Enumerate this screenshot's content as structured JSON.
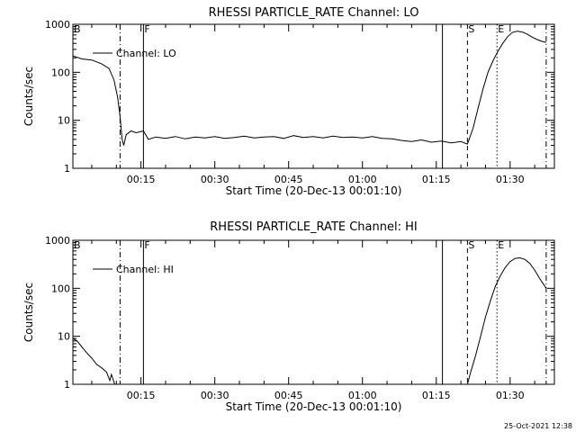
{
  "footer_timestamp": "25-Oct-2021 12:38",
  "chart_data": [
    {
      "type": "line",
      "title": "RHESSI PARTICLE_RATE Channel: LO",
      "xlabel": "Start Time (20-Dec-13 00:01:10)",
      "ylabel": "Counts/sec",
      "yscale": "log",
      "ylim": [
        1,
        1000
      ],
      "xlim": [
        "00:01:10",
        "01:39:00"
      ],
      "x_ticks": [
        "00:15",
        "00:30",
        "00:45",
        "01:00",
        "01:15",
        "01:30"
      ],
      "y_ticks": [
        "1",
        "10",
        "100",
        "1000"
      ],
      "legend": {
        "label": "Channel: LO",
        "placement": "top-left"
      },
      "markers": [
        {
          "label": "B",
          "time": "00:01:10",
          "style": "solid"
        },
        {
          "label": "",
          "time": "00:10:45",
          "style": "dashdot"
        },
        {
          "label": "F",
          "time": "00:15:30",
          "style": "solid"
        },
        {
          "label": "",
          "time": "01:16:15",
          "style": "solid"
        },
        {
          "label": "S",
          "time": "01:21:20",
          "style": "dashed"
        },
        {
          "label": "E",
          "time": "01:27:20",
          "style": "dotted"
        },
        {
          "label": "",
          "time": "01:37:20",
          "style": "dashdot"
        }
      ],
      "series": [
        {
          "values": [
            [
              "00:01:10",
              220
            ],
            [
              "00:03:00",
              190
            ],
            [
              "00:05:00",
              180
            ],
            [
              "00:07:00",
              150
            ],
            [
              "00:08:30",
              120
            ],
            [
              "00:09:30",
              70
            ],
            [
              "00:10:15",
              30
            ],
            [
              "00:10:45",
              12
            ],
            [
              "00:11:10",
              4
            ],
            [
              "00:11:30",
              3
            ],
            [
              "00:12:00",
              5
            ],
            [
              "00:13:00",
              6
            ],
            [
              "00:14:00",
              5.5
            ],
            [
              "00:15:30",
              6
            ],
            [
              "00:16:30",
              4
            ],
            [
              "00:18:00",
              4.5
            ],
            [
              "00:20:00",
              4.2
            ],
            [
              "00:22:00",
              4.6
            ],
            [
              "00:24:00",
              4.1
            ],
            [
              "00:26:00",
              4.5
            ],
            [
              "00:28:00",
              4.3
            ],
            [
              "00:30:00",
              4.6
            ],
            [
              "00:32:00",
              4.2
            ],
            [
              "00:34:00",
              4.4
            ],
            [
              "00:36:00",
              4.7
            ],
            [
              "00:38:00",
              4.3
            ],
            [
              "00:40:00",
              4.5
            ],
            [
              "00:42:00",
              4.6
            ],
            [
              "00:44:00",
              4.2
            ],
            [
              "00:46:00",
              4.8
            ],
            [
              "00:48:00",
              4.4
            ],
            [
              "00:50:00",
              4.6
            ],
            [
              "00:52:00",
              4.3
            ],
            [
              "00:54:00",
              4.7
            ],
            [
              "00:56:00",
              4.4
            ],
            [
              "00:58:00",
              4.5
            ],
            [
              "01:00:00",
              4.3
            ],
            [
              "01:02:00",
              4.6
            ],
            [
              "01:04:00",
              4.2
            ],
            [
              "01:06:00",
              4.1
            ],
            [
              "01:08:00",
              3.8
            ],
            [
              "01:10:00",
              3.6
            ],
            [
              "01:12:00",
              3.9
            ],
            [
              "01:14:00",
              3.5
            ],
            [
              "01:16:00",
              3.7
            ],
            [
              "01:18:00",
              3.4
            ],
            [
              "01:20:00",
              3.6
            ],
            [
              "01:21:20",
              3.2
            ],
            [
              "01:22:30",
              7
            ],
            [
              "01:23:30",
              18
            ],
            [
              "01:24:30",
              45
            ],
            [
              "01:25:30",
              100
            ],
            [
              "01:26:30",
              170
            ],
            [
              "01:27:30",
              270
            ],
            [
              "01:28:30",
              400
            ],
            [
              "01:29:30",
              550
            ],
            [
              "01:30:30",
              680
            ],
            [
              "01:31:30",
              720
            ],
            [
              "01:32:30",
              690
            ],
            [
              "01:33:30",
              620
            ],
            [
              "01:34:30",
              540
            ],
            [
              "01:35:30",
              480
            ],
            [
              "01:36:30",
              440
            ],
            [
              "01:37:20",
              420
            ]
          ]
        }
      ]
    },
    {
      "type": "line",
      "title": "RHESSI PARTICLE_RATE Channel: HI",
      "xlabel": "Start Time (20-Dec-13 00:01:10)",
      "ylabel": "Counts/sec",
      "yscale": "log",
      "ylim": [
        1,
        1000
      ],
      "xlim": [
        "00:01:10",
        "01:39:00"
      ],
      "x_ticks": [
        "00:15",
        "00:30",
        "00:45",
        "01:00",
        "01:15",
        "01:30"
      ],
      "y_ticks": [
        "1",
        "10",
        "100",
        "1000"
      ],
      "legend": {
        "label": "Channel: HI",
        "placement": "top-left"
      },
      "markers": [
        {
          "label": "B",
          "time": "00:01:10",
          "style": "solid"
        },
        {
          "label": "",
          "time": "00:10:45",
          "style": "dashdot"
        },
        {
          "label": "F",
          "time": "00:15:30",
          "style": "solid"
        },
        {
          "label": "",
          "time": "01:16:15",
          "style": "solid"
        },
        {
          "label": "S",
          "time": "01:21:20",
          "style": "dashed"
        },
        {
          "label": "E",
          "time": "01:27:20",
          "style": "dotted"
        },
        {
          "label": "",
          "time": "01:37:20",
          "style": "dashdot"
        }
      ],
      "series": [
        {
          "values": [
            [
              "00:01:10",
              9
            ],
            [
              "00:02:00",
              8
            ],
            [
              "00:03:00",
              6
            ],
            [
              "00:04:00",
              4.5
            ],
            [
              "00:05:00",
              3.5
            ],
            [
              "00:06:00",
              2.6
            ],
            [
              "00:07:00",
              2.2
            ],
            [
              "00:08:00",
              1.8
            ],
            [
              "00:08:40",
              1.2
            ],
            [
              "00:09:00",
              1.6
            ],
            [
              "00:09:40",
              1.0
            ],
            [
              "01:21:20",
              1.0
            ],
            [
              "01:22:00",
              1.8
            ],
            [
              "01:23:00",
              4
            ],
            [
              "01:24:00",
              10
            ],
            [
              "01:25:00",
              25
            ],
            [
              "01:26:00",
              55
            ],
            [
              "01:27:00",
              110
            ],
            [
              "01:28:00",
              180
            ],
            [
              "01:29:00",
              270
            ],
            [
              "01:30:00",
              360
            ],
            [
              "01:31:00",
              420
            ],
            [
              "01:32:00",
              430
            ],
            [
              "01:33:00",
              400
            ],
            [
              "01:34:00",
              330
            ],
            [
              "01:35:00",
              240
            ],
            [
              "01:36:00",
              160
            ],
            [
              "01:37:20",
              100
            ]
          ]
        }
      ]
    }
  ]
}
